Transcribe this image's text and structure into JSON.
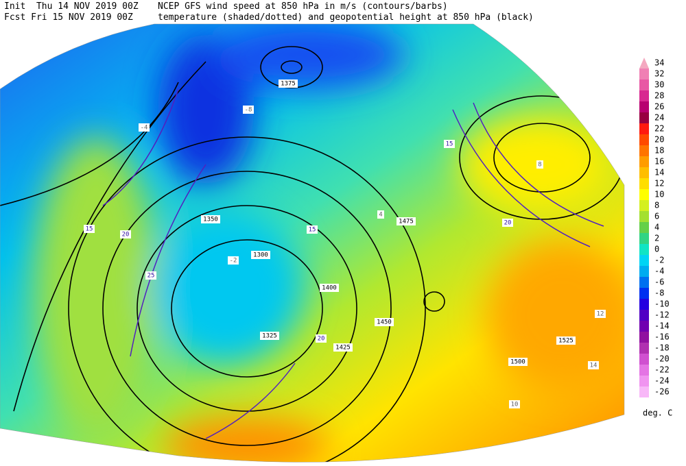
{
  "header": {
    "init": "Init  Thu 14 NOV 2019 00Z",
    "forecast": "Fcst Fri 15 NOV 2019 00Z",
    "line1": "NCEP GFS wind speed at 850 hPa in m/s (contours/barbs)",
    "line2": "temperature (shaded/dotted) and geopotential height at 850 hPa (black)"
  },
  "colorbar": {
    "levels": [
      34,
      32,
      30,
      28,
      26,
      24,
      22,
      20,
      18,
      16,
      14,
      12,
      10,
      8,
      6,
      4,
      2,
      0,
      -2,
      -4,
      -6,
      -8,
      -10,
      -12,
      -14,
      -16,
      -18,
      -20,
      -22,
      -24,
      -26
    ],
    "colors": [
      "#f4a8c0",
      "#f080b4",
      "#e858a4",
      "#d82890",
      "#b80070",
      "#980040",
      "#ff1a10",
      "#ff4a00",
      "#ff7400",
      "#ff9c00",
      "#ffbe00",
      "#ffde00",
      "#ffff00",
      "#d4f020",
      "#a4e030",
      "#64d048",
      "#30d484",
      "#10e4c4",
      "#00d4f4",
      "#00acf0",
      "#0070f0",
      "#0030f0",
      "#2400e0",
      "#5000c4",
      "#7000b0",
      "#9010a0",
      "#b030b0",
      "#d050d0",
      "#e474e4",
      "#f094f0",
      "#f8b8f8"
    ],
    "unit": "deg. C"
  },
  "map": {
    "height_labels": [
      "1375",
      "1350",
      "1300",
      "1325",
      "1400",
      "1425",
      "1450",
      "1475",
      "1500",
      "1525"
    ],
    "wind_labels": [
      "20",
      "15",
      "25",
      "15",
      "20",
      "15",
      "20"
    ],
    "temperature_labels": [
      "-8",
      "-4",
      "-2",
      "4",
      "8",
      "12",
      "10",
      "14"
    ]
  }
}
